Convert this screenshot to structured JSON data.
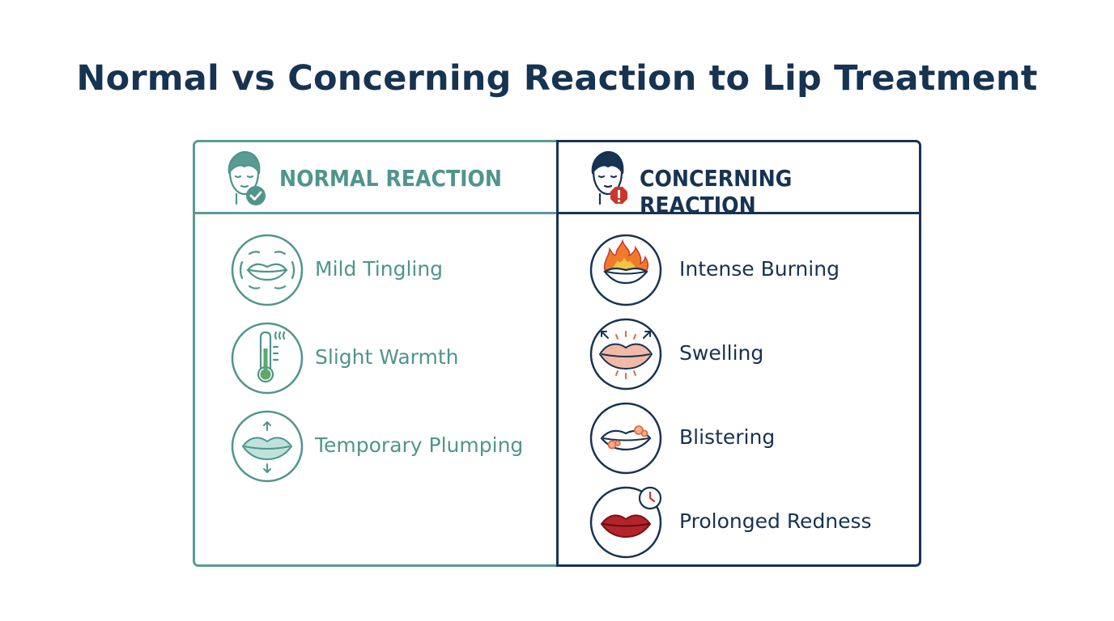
{
  "title": "Normal vs Concerning Reaction to Lip Treatment",
  "normal": {
    "heading": "NORMAL REACTION",
    "header_icon": "face-check-icon",
    "color": "#4f958c",
    "items": [
      {
        "label": "Mild Tingling",
        "icon": "tingling-lips-icon"
      },
      {
        "label": "Slight Warmth",
        "icon": "thermometer-icon"
      },
      {
        "label": "Temporary Plumping",
        "icon": "plump-lips-icon"
      }
    ]
  },
  "concerning": {
    "heading": "CONCERNING REACTION",
    "header_icon": "face-alert-icon",
    "color": "#173352",
    "alert_color": "#c9372c",
    "items": [
      {
        "label": "Intense Burning",
        "icon": "burning-lips-icon"
      },
      {
        "label": "Swelling",
        "icon": "swollen-lips-icon"
      },
      {
        "label": "Blistering",
        "icon": "blistered-lips-icon"
      },
      {
        "label": "Prolonged Redness",
        "icon": "red-lips-clock-icon"
      }
    ]
  }
}
